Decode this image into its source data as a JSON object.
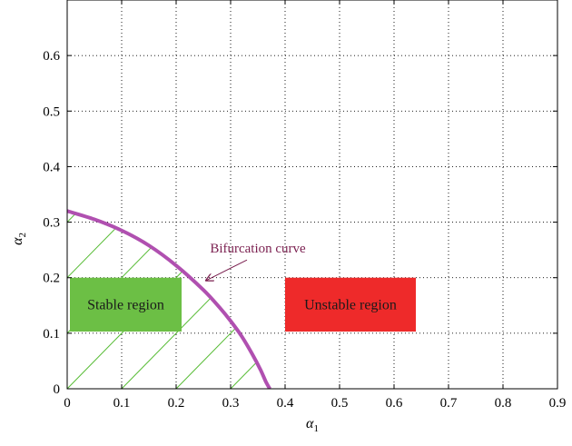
{
  "chart_data": {
    "type": "line",
    "title": "",
    "xlabel": "α",
    "xlabel_sub": "1",
    "ylabel": "α",
    "ylabel_sub": "2",
    "xlim": [
      0,
      0.9
    ],
    "ylim": [
      0,
      0.7
    ],
    "xticks": [
      0,
      0.1,
      0.2,
      0.3,
      0.4,
      0.5,
      0.6,
      0.7,
      0.8,
      0.9
    ],
    "xtick_labels": [
      "0",
      "0.1",
      "0.2",
      "0.3",
      "0.4",
      "0.5",
      "0.6",
      "0.7",
      "0.8",
      "0.9"
    ],
    "yticks": [
      0,
      0.1,
      0.2,
      0.3,
      0.4,
      0.5,
      0.6
    ],
    "ytick_labels": [
      "0",
      "0.1",
      "0.2",
      "0.3",
      "0.4",
      "0.5",
      "0.6"
    ],
    "grid": true,
    "series": [
      {
        "name": "Bifurcation curve",
        "color": "#b050b0",
        "x": [
          0,
          0.05,
          0.1,
          0.15,
          0.2,
          0.25,
          0.28,
          0.3,
          0.32,
          0.34,
          0.355,
          0.365,
          0.372
        ],
        "y": [
          0.32,
          0.305,
          0.285,
          0.258,
          0.222,
          0.178,
          0.146,
          0.122,
          0.095,
          0.062,
          0.034,
          0.012,
          0.0
        ]
      }
    ],
    "annotations": [
      {
        "id": "stable",
        "text": "Stable region",
        "box": {
          "x0": 0.005,
          "x1": 0.21,
          "y0": 0.103,
          "y1": 0.2
        },
        "fill": "#6cbf45",
        "text_color": "#1a1a1a"
      },
      {
        "id": "unstable",
        "text": "Unstable region",
        "box": {
          "x0": 0.4,
          "x1": 0.64,
          "y0": 0.103,
          "y1": 0.2
        },
        "fill": "#ee2a2a",
        "text_color": "#1a1a1a"
      },
      {
        "id": "bifurcation",
        "text": "Bifurcation curve",
        "text_color": "#7a1f4f",
        "text_at": [
          0.35,
          0.245
        ],
        "arrow_from": [
          0.33,
          0.232
        ],
        "arrow_to": [
          0.255,
          0.195
        ]
      }
    ],
    "hatch": {
      "color": "#55bb33",
      "region": "below bifurcation curve",
      "slope": 1.0,
      "spacing_x": 0.1
    }
  }
}
